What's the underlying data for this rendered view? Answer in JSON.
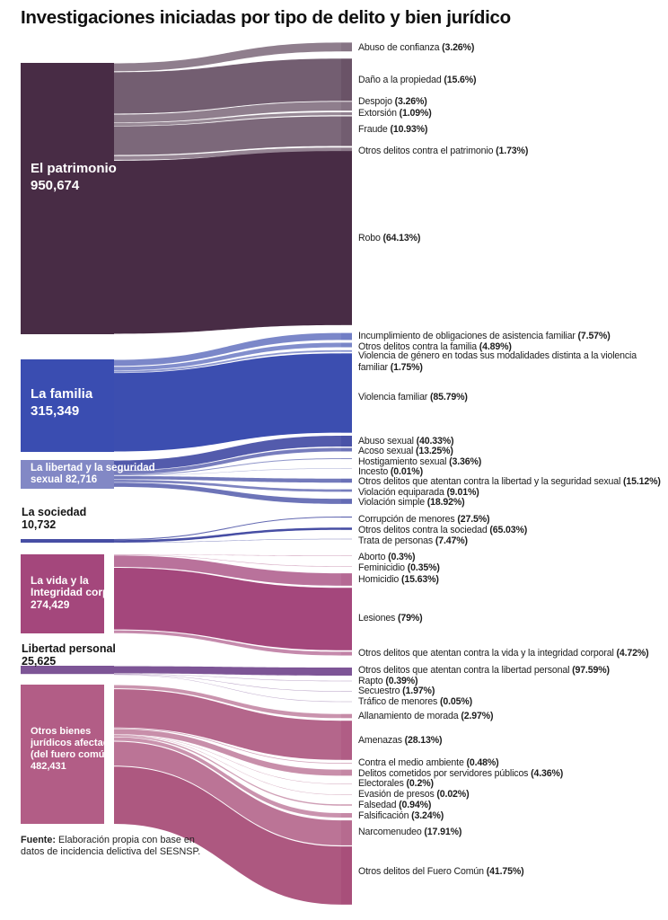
{
  "title": "Investigaciones iniciadas por tipo de delito y bien jurídico",
  "source_note": {
    "prefix": "Fuente:",
    "line1_rest": " Elaboración propia con base en",
    "line2": "datos de incidencia delictiva del SESNSP."
  },
  "chart_data": {
    "type": "sankey",
    "title": "Investigaciones iniciadas por tipo de delito y bien jurídico",
    "legend_position": "none",
    "groups": [
      {
        "name": "El patrimonio",
        "total": "950,674",
        "label_lines": [
          "El patrimonio",
          "950,674"
        ],
        "node_color": "#482c45",
        "flow_color": "#482c45",
        "children": [
          {
            "label": "Abuso de confianza",
            "pct": "3.26"
          },
          {
            "label": "Daño a la propiedad",
            "pct": "15.6"
          },
          {
            "label": "Despojo",
            "pct": "3.26"
          },
          {
            "label": "Extorsión",
            "pct": "1.09"
          },
          {
            "label": "Fraude",
            "pct": "10.93"
          },
          {
            "label": "Otros delitos contra el patrimonio",
            "pct": "1.73"
          },
          {
            "label": "Robo",
            "pct": "64.13"
          }
        ]
      },
      {
        "name": "La familia",
        "total": "315,349",
        "label_lines": [
          "La familia",
          "315,349"
        ],
        "node_color": "#3a4db1",
        "flow_color": "#3c4eb0",
        "children": [
          {
            "label": "Incumplimiento de obligaciones de asistencia familiar",
            "pct": "7.57"
          },
          {
            "label": "Otros delitos contra la familia",
            "pct": "4.89"
          },
          {
            "label": "Violencia de género en todas sus modalidades distinta a la violencia\nfamiliar",
            "pct": "1.75"
          },
          {
            "label": "Violencia familiar",
            "pct": "85.79"
          }
        ]
      },
      {
        "name": "La libertad y la seguridad sexual",
        "total": "82,716",
        "label_lines": [
          "La libertad y la seguridad",
          "sexual 82,716"
        ],
        "node_color": "#8288c5",
        "flow_color": "#4750a6",
        "children": [
          {
            "label": "Abuso sexual",
            "pct": "40.33"
          },
          {
            "label": "Acoso sexual",
            "pct": "13.25"
          },
          {
            "label": "Hostigamiento sexual",
            "pct": "3.36"
          },
          {
            "label": "Incesto",
            "pct": "0.01"
          },
          {
            "label": "Otros delitos que atentan contra la libertad y la seguridad sexual",
            "pct": "15.12"
          },
          {
            "label": "Violación equiparada",
            "pct": "9.01"
          },
          {
            "label": "Violación simple",
            "pct": "18.92"
          }
        ]
      },
      {
        "name": "La sociedad",
        "total": "10,732",
        "label_lines": [
          "La sociedad",
          "10,732"
        ],
        "node_color": "#474ea4",
        "flow_color": "#474ea4",
        "children": [
          {
            "label": "Corrupción de menores",
            "pct": "27.5"
          },
          {
            "label": "Otros delitos contra la sociedad",
            "pct": "65.03"
          },
          {
            "label": "Trata de personas",
            "pct": "7.47"
          }
        ]
      },
      {
        "name": "La vida y la Integridad corporal",
        "total": "274,429",
        "label_lines": [
          "La vida y la",
          "Integridad corporal",
          "274,429"
        ],
        "node_color": "#a4477c",
        "flow_color": "#a4477c",
        "children": [
          {
            "label": "Aborto",
            "pct": "0.3"
          },
          {
            "label": "Feminicidio",
            "pct": "0.35"
          },
          {
            "label": "Homicidio",
            "pct": "15.63"
          },
          {
            "label": "Lesiones",
            "pct": "79"
          },
          {
            "label": "Otros delitos que atentan contra la vida y la integridad corporal",
            "pct": "4.72"
          }
        ]
      },
      {
        "name": "Libertad personal",
        "total": "25,625",
        "label_lines": [
          "Libertad personal",
          "25,625"
        ],
        "node_color": "#7d5596",
        "flow_color": "#7d5596",
        "children": [
          {
            "label": "Otros delitos que atentan contra la libertad personal",
            "pct": "97.59"
          },
          {
            "label": "Rapto",
            "pct": "0.39"
          },
          {
            "label": "Secuestro",
            "pct": "1.97"
          },
          {
            "label": "Tráfico de menores",
            "pct": "0.05"
          }
        ]
      },
      {
        "name": "Otros bienes jurídicos afectados (del fuero común)",
        "total": "482,431",
        "label_lines": [
          "Otros bienes",
          "jurídicos afectados",
          "(del fuero común)",
          "482,431"
        ],
        "node_color": "#b25d86",
        "flow_color": "#a84e79",
        "children": [
          {
            "label": "Allanamiento de morada",
            "pct": "2.97"
          },
          {
            "label": "Amenazas",
            "pct": "28.13"
          },
          {
            "label": "Contra el medio ambiente",
            "pct": "0.48"
          },
          {
            "label": "Delitos cometidos por servidores públicos",
            "pct": "4.36"
          },
          {
            "label": "Electorales",
            "pct": "0.2"
          },
          {
            "label": "Evasión de presos",
            "pct": "0.02"
          },
          {
            "label": "Falsedad",
            "pct": "0.94"
          },
          {
            "label": "Falsificación",
            "pct": "3.24"
          },
          {
            "label": "Narcomenudeo",
            "pct": "17.91"
          },
          {
            "label": "Otros delitos del Fuero Común",
            "pct": "41.75"
          }
        ]
      }
    ]
  }
}
